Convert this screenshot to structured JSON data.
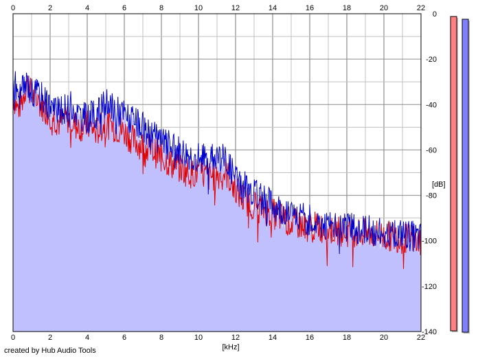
{
  "footer": {
    "credit": "created by Hub Audio Tools"
  },
  "chart_data": {
    "type": "area",
    "xlabel": "[kHz]",
    "ylabel": "[dB]",
    "xlim": [
      0,
      22
    ],
    "ylim": [
      -140,
      0
    ],
    "x_ticks": [
      0,
      2,
      4,
      6,
      8,
      10,
      12,
      14,
      16,
      18,
      20,
      22
    ],
    "y_ticks": [
      0,
      -20,
      -40,
      -60,
      -80,
      -100,
      -120,
      -140
    ],
    "grid": true,
    "colors": {
      "fill": "#c0c0ff",
      "red_line": "#e00000",
      "blue_line": "#0000cc",
      "grid_major": "#c0c0c0",
      "grid_minor": "#8c8c8c",
      "meter_red": "#ff8080",
      "meter_blue": "#8080ff"
    },
    "series": [
      {
        "color": "red",
        "x": [
          0,
          0.25,
          0.5,
          0.75,
          1,
          1.5,
          2,
          2.5,
          3,
          3.5,
          4,
          4.5,
          5,
          5.5,
          6,
          6.5,
          7,
          7.5,
          8,
          8.5,
          9,
          9.5,
          10,
          10.5,
          11,
          11.5,
          12,
          12.5,
          13,
          13.5,
          14,
          14.5,
          15,
          15.5,
          16,
          16.5,
          17,
          17.5,
          18,
          18.5,
          19,
          19.5,
          20,
          20.5,
          21,
          21.5,
          22
        ],
        "values": [
          -36,
          -42,
          -38,
          -30,
          -36,
          -40,
          -44,
          -48,
          -46,
          -50,
          -49,
          -52,
          -48,
          -50,
          -52,
          -56,
          -58,
          -60,
          -63,
          -66,
          -68,
          -70,
          -70,
          -72,
          -71,
          -70,
          -78,
          -82,
          -84,
          -86,
          -88,
          -90,
          -92,
          -93,
          -94,
          -94,
          -95,
          -96,
          -96,
          -96,
          -97,
          -97,
          -98,
          -98,
          -99,
          -99,
          -100
        ]
      },
      {
        "color": "blue",
        "x": [
          0,
          0.25,
          0.5,
          0.75,
          1,
          1.5,
          2,
          2.5,
          3,
          3.5,
          4,
          4.5,
          5,
          5.5,
          6,
          6.5,
          7,
          7.5,
          8,
          8.5,
          9,
          9.5,
          10,
          10.5,
          11,
          11.5,
          12,
          12.5,
          13,
          13.5,
          14,
          14.5,
          15,
          15.5,
          16,
          16.5,
          17,
          17.5,
          18,
          18.5,
          19,
          19.5,
          20,
          20.5,
          21,
          21.5,
          22
        ],
        "values": [
          -28,
          -36,
          -34,
          -30,
          -34,
          -36,
          -40,
          -44,
          -40,
          -44,
          -46,
          -44,
          -40,
          -42,
          -44,
          -48,
          -50,
          -54,
          -56,
          -58,
          -60,
          -62,
          -63,
          -64,
          -62,
          -64,
          -72,
          -76,
          -78,
          -82,
          -84,
          -86,
          -88,
          -90,
          -91,
          -92,
          -93,
          -94,
          -94,
          -95,
          -95,
          -96,
          -96,
          -97,
          -97,
          -98,
          -99
        ]
      }
    ]
  }
}
